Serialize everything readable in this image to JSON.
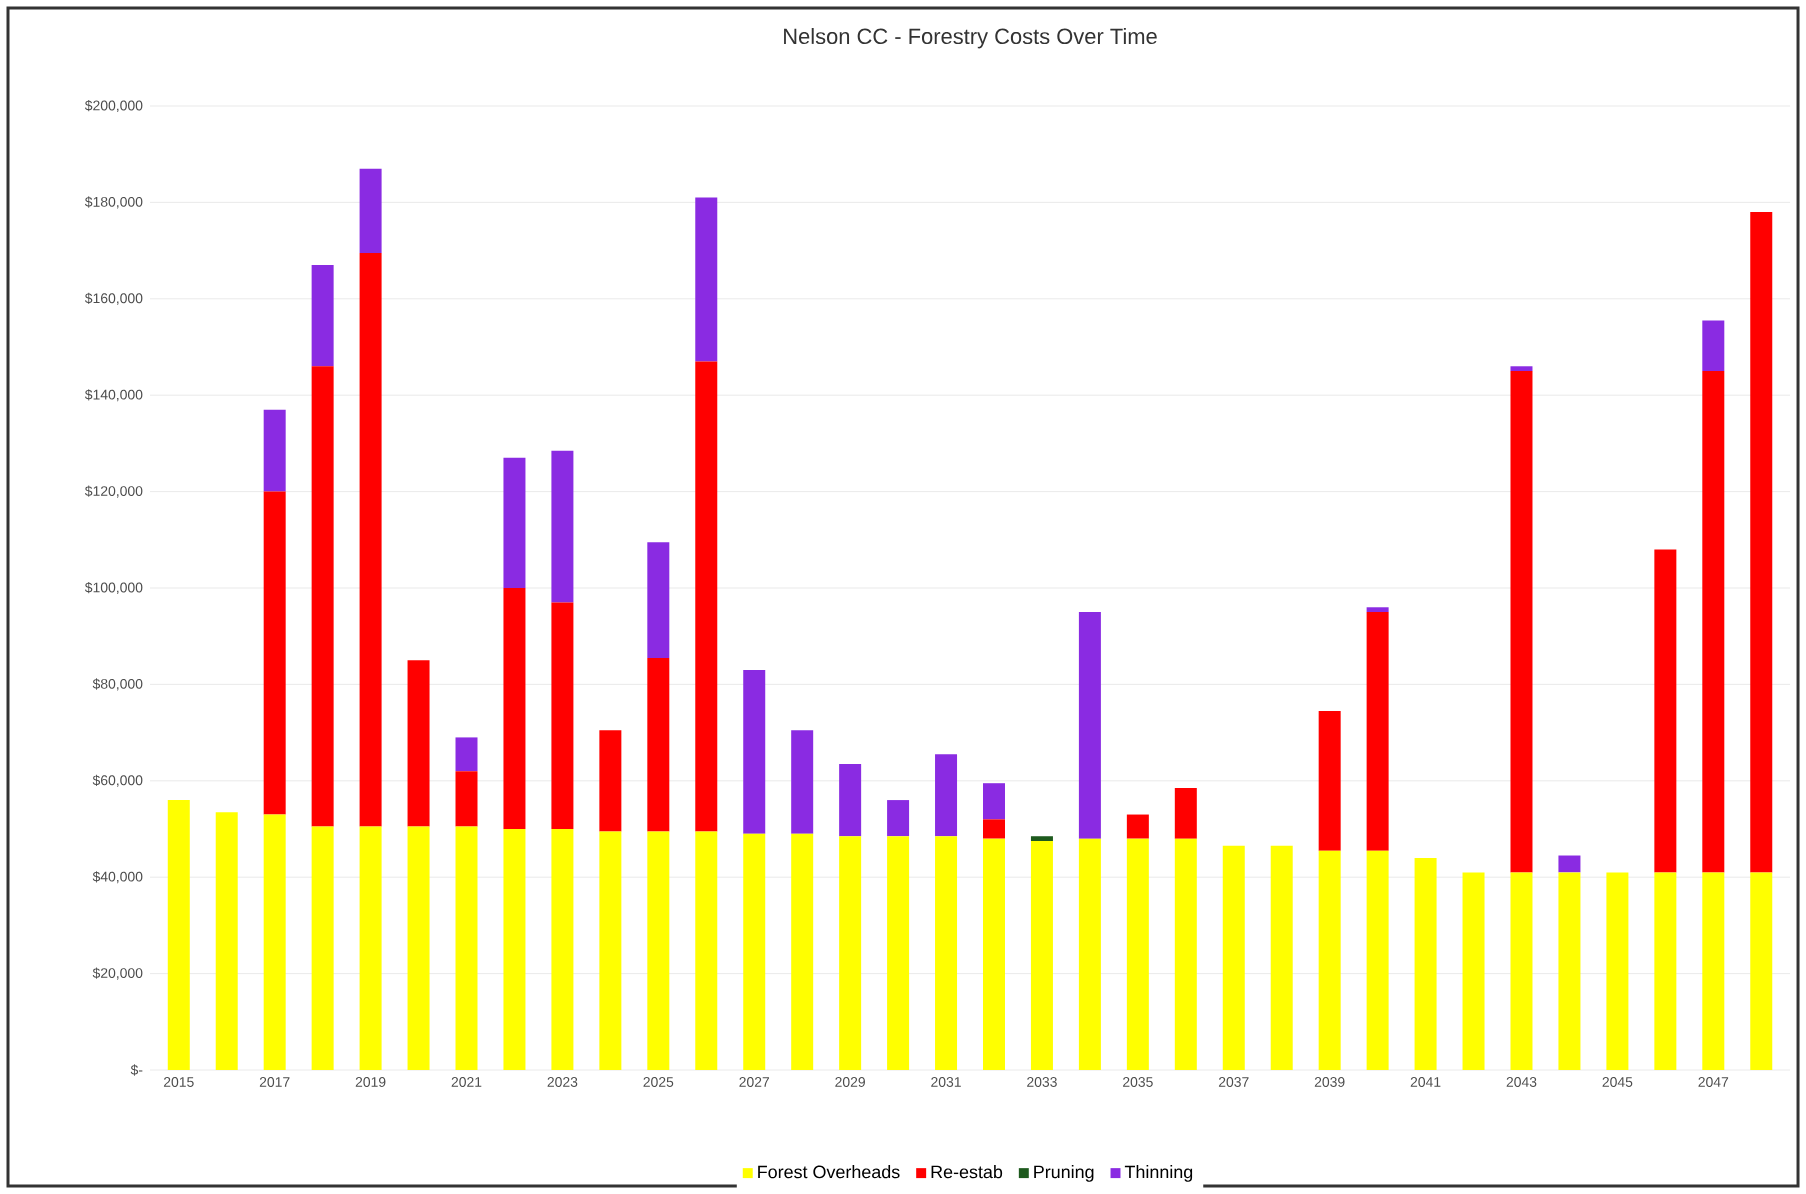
{
  "chart_data": {
    "type": "bar",
    "stacked": true,
    "title": "Nelson CC - Forestry Costs Over Time",
    "categories": [
      "2015",
      null,
      "2017",
      null,
      "2019",
      null,
      "2021",
      null,
      "2023",
      null,
      "2025",
      null,
      "2027",
      null,
      "2029",
      null,
      "2031",
      null,
      "2033",
      null,
      "2035",
      null,
      "2037",
      null,
      "2039",
      null,
      "2041",
      null,
      "2043",
      null,
      "2045",
      null,
      "2047",
      null
    ],
    "series": [
      {
        "name": "Forest Overheads",
        "color": "#ffff00",
        "values": [
          56000,
          53500,
          53000,
          50500,
          50500,
          50500,
          50500,
          50000,
          50000,
          49500,
          49500,
          49500,
          49000,
          49000,
          48500,
          48500,
          48500,
          48000,
          47500,
          48000,
          48000,
          48000,
          46500,
          46500,
          45500,
          45500,
          44000,
          41000,
          41000,
          41000,
          41000,
          41000,
          41000,
          41000
        ]
      },
      {
        "name": "Re-estab",
        "color": "#ff0000",
        "values": [
          0,
          0,
          67000,
          95500,
          119000,
          34500,
          11500,
          50000,
          47000,
          21000,
          36000,
          97500,
          0,
          0,
          0,
          0,
          0,
          4000,
          0,
          0,
          5000,
          10500,
          0,
          0,
          29000,
          49500,
          0,
          0,
          104000,
          0,
          0,
          67000,
          104000,
          137000
        ]
      },
      {
        "name": "Pruning",
        "color": "#1e5a1e",
        "values": [
          0,
          0,
          0,
          0,
          0,
          0,
          0,
          0,
          0,
          0,
          0,
          0,
          0,
          0,
          0,
          0,
          0,
          0,
          1000,
          0,
          0,
          0,
          0,
          0,
          0,
          0,
          0,
          0,
          0,
          0,
          0,
          0,
          0,
          0
        ]
      },
      {
        "name": "Thinning",
        "color": "#8a2be2",
        "values": [
          0,
          0,
          17000,
          21000,
          17500,
          0,
          7000,
          27000,
          31500,
          0,
          24000,
          34000,
          34000,
          21500,
          15000,
          7500,
          17000,
          7500,
          0,
          47000,
          0,
          0,
          0,
          0,
          0,
          1000,
          0,
          0,
          1000,
          3500,
          0,
          0,
          10500,
          0
        ]
      }
    ],
    "ylim": [
      0,
      200000
    ],
    "yticks": [
      {
        "value": 0,
        "label": "$-"
      },
      {
        "value": 20000,
        "label": "$20,000"
      },
      {
        "value": 40000,
        "label": "$40,000"
      },
      {
        "value": 60000,
        "label": "$60,000"
      },
      {
        "value": 80000,
        "label": "$80,000"
      },
      {
        "value": 100000,
        "label": "$100,000"
      },
      {
        "value": 120000,
        "label": "$120,000"
      },
      {
        "value": 140000,
        "label": "$140,000"
      },
      {
        "value": 160000,
        "label": "$160,000"
      },
      {
        "value": 180000,
        "label": "$180,000"
      },
      {
        "value": 200000,
        "label": "$200,000"
      }
    ],
    "grid": "y",
    "legend": "bottom"
  }
}
